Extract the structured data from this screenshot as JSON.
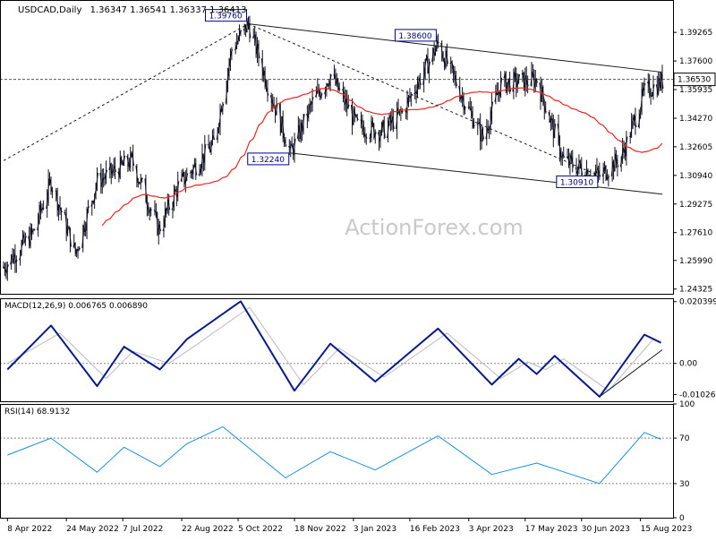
{
  "header": {
    "symbol": "USDCAD,Daily",
    "ohlc": "1.36347 1.36541 1.36337 1.36413"
  },
  "watermark": "ActionForex.com",
  "colors": {
    "background": "#ffffff",
    "axis": "#000000",
    "candle": "#111122",
    "sma": "#e8251f",
    "macd": "#0a1a8c",
    "signal": "#b9b9c8",
    "rsi": "#1a8fe3",
    "trendline": "#1c1c1c",
    "watermark": "#c9c9c9",
    "label_border": "#00008b"
  },
  "chart_data": [
    {
      "type": "candlestick",
      "name": "price",
      "indicators": [
        "moving average"
      ],
      "ylim": [
        1.2405,
        1.4115
      ],
      "ticks": [
        "1.39265",
        "1.37600",
        "1.35935",
        "1.34270",
        "1.32605",
        "1.30940",
        "1.29275",
        "1.27610",
        "1.25990",
        "1.24325"
      ],
      "tick_values": [
        1.39265,
        1.376,
        1.35935,
        1.3427,
        1.32605,
        1.3094,
        1.29275,
        1.2761,
        1.2599,
        1.24325
      ],
      "current_price": {
        "label": "1.36530",
        "value": 1.3653
      },
      "annotations": [
        {
          "label": "1.39760",
          "value": 1.3976,
          "date": "2022-10-13"
        },
        {
          "label": "1.38600",
          "value": 1.386,
          "date": "2023-03-10"
        },
        {
          "label": "1.32240",
          "value": 1.3224,
          "date": "2022-11-15"
        },
        {
          "label": "1.30910",
          "value": 1.3091,
          "date": "2023-07-14"
        }
      ],
      "trendlines": [
        {
          "from": [
            "2022-04-05",
            1.318
          ],
          "to": [
            "2022-10-13",
            1.3976
          ],
          "style": "dashed"
        },
        {
          "from": [
            "2022-10-13",
            1.3976
          ],
          "to": [
            "2023-07-14",
            1.3091
          ],
          "style": "dashed"
        },
        {
          "from": [
            "2022-10-13",
            1.3976
          ],
          "to": [
            "2023-09-01",
            1.3695
          ],
          "style": "solid"
        },
        {
          "from": [
            "2022-11-15",
            1.3224
          ],
          "to": [
            "2023-09-01",
            1.2985
          ],
          "style": "solid"
        }
      ]
    },
    {
      "type": "line",
      "name": "MACD",
      "title": "MACD(12,26,9) 0.006765 0.006890",
      "ylim": [
        -0.0125,
        0.0215
      ],
      "ticks": [
        "0.020399",
        "0.00",
        "-0.01026"
      ],
      "tick_values": [
        0.020399,
        0.0,
        -0.01026
      ],
      "zero_dotted": 0.0,
      "series": [
        {
          "values": [
            {
              "date": "2022-04-08",
              "value": -0.002
            },
            {
              "date": "2022-05-12",
              "value": 0.0125
            },
            {
              "date": "2022-06-17",
              "value": -0.0075
            },
            {
              "date": "2022-07-08",
              "value": 0.0055
            },
            {
              "date": "2022-08-05",
              "value": -0.002
            },
            {
              "date": "2022-08-26",
              "value": 0.008
            },
            {
              "date": "2022-10-07",
              "value": 0.0205
            },
            {
              "date": "2022-11-18",
              "value": -0.009
            },
            {
              "date": "2022-12-16",
              "value": 0.0065
            },
            {
              "date": "2023-01-20",
              "value": -0.006
            },
            {
              "date": "2023-03-10",
              "value": 0.0115
            },
            {
              "date": "2023-04-21",
              "value": -0.007
            },
            {
              "date": "2023-05-12",
              "value": 0.0015
            },
            {
              "date": "2023-05-26",
              "value": -0.0035
            },
            {
              "date": "2023-06-09",
              "value": 0.0025
            },
            {
              "date": "2023-07-14",
              "value": -0.011
            },
            {
              "date": "2023-08-18",
              "value": 0.0095
            },
            {
              "date": "2023-08-31",
              "value": 0.0068
            }
          ]
        },
        {
          "values": [
            {
              "date": "2022-04-08",
              "value": 0.0
            },
            {
              "date": "2022-05-19",
              "value": 0.01
            },
            {
              "date": "2022-06-24",
              "value": -0.005
            },
            {
              "date": "2022-07-15",
              "value": 0.004
            },
            {
              "date": "2022-08-12",
              "value": 0.0
            },
            {
              "date": "2022-09-02",
              "value": 0.006
            },
            {
              "date": "2022-10-14",
              "value": 0.0185
            },
            {
              "date": "2022-11-25",
              "value": -0.007
            },
            {
              "date": "2022-12-23",
              "value": 0.005
            },
            {
              "date": "2023-01-27",
              "value": -0.0045
            },
            {
              "date": "2023-03-17",
              "value": 0.01
            },
            {
              "date": "2023-04-28",
              "value": -0.005
            },
            {
              "date": "2023-05-19",
              "value": 0.0005
            },
            {
              "date": "2023-06-02",
              "value": -0.002
            },
            {
              "date": "2023-06-16",
              "value": 0.0015
            },
            {
              "date": "2023-07-21",
              "value": -0.009
            },
            {
              "date": "2023-08-25",
              "value": 0.008
            },
            {
              "date": "2023-08-31",
              "value": 0.0069
            }
          ]
        }
      ],
      "trendline": {
        "from": [
          "2023-07-14",
          -0.011
        ],
        "to": [
          "2023-09-01",
          0.0045
        ]
      }
    },
    {
      "type": "line",
      "name": "RSI",
      "title": "RSI(14) 68.9132",
      "ylim": [
        0,
        100
      ],
      "ticks": [
        "100",
        "70",
        "30",
        "0"
      ],
      "tick_values": [
        100,
        70,
        30,
        0
      ],
      "dotted_levels": [
        70,
        30
      ],
      "series": [
        {
          "values": [
            {
              "date": "2022-04-08",
              "value": 55
            },
            {
              "date": "2022-05-12",
              "value": 70
            },
            {
              "date": "2022-06-17",
              "value": 40
            },
            {
              "date": "2022-07-08",
              "value": 62
            },
            {
              "date": "2022-08-05",
              "value": 45
            },
            {
              "date": "2022-08-26",
              "value": 65
            },
            {
              "date": "2022-09-23",
              "value": 80
            },
            {
              "date": "2022-11-11",
              "value": 35
            },
            {
              "date": "2022-12-16",
              "value": 58
            },
            {
              "date": "2023-01-20",
              "value": 42
            },
            {
              "date": "2023-03-10",
              "value": 72
            },
            {
              "date": "2023-04-21",
              "value": 38
            },
            {
              "date": "2023-05-26",
              "value": 48
            },
            {
              "date": "2023-07-14",
              "value": 30
            },
            {
              "date": "2023-08-18",
              "value": 75
            },
            {
              "date": "2023-08-31",
              "value": 68.9
            }
          ]
        }
      ]
    }
  ],
  "xaxis": {
    "labels": [
      "8 Apr 2022",
      "24 May 2022",
      "7 Jul 2022",
      "22 Aug 2022",
      "5 Oct 2022",
      "18 Nov 2022",
      "3 Jan 2023",
      "16 Feb 2023",
      "3 Apr 2023",
      "17 May 2023",
      "30 Jun 2023",
      "15 Aug 2023"
    ],
    "label_dates": [
      "2022-04-08",
      "2022-05-24",
      "2022-07-07",
      "2022-08-22",
      "2022-10-05",
      "2022-11-18",
      "2023-01-03",
      "2023-02-16",
      "2023-04-03",
      "2023-05-17",
      "2023-06-30",
      "2023-08-15"
    ],
    "range": [
      "2022-04-05",
      "2023-09-01"
    ]
  }
}
